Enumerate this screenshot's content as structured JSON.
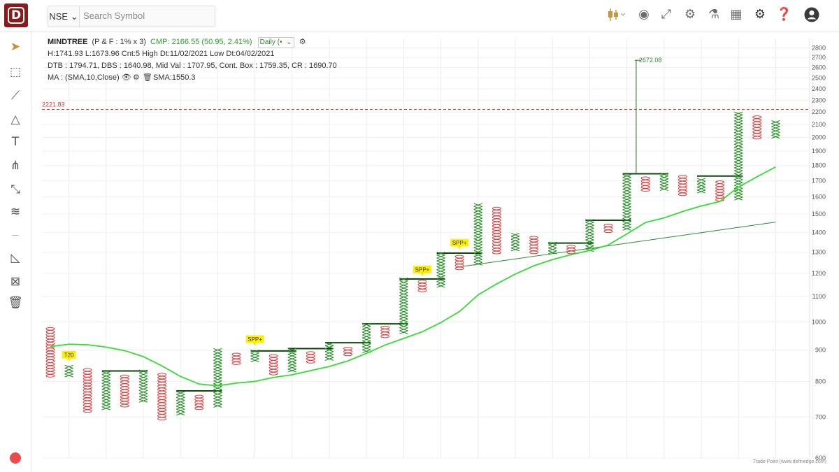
{
  "topbar": {
    "exchange": "NSE",
    "search_placeholder": "Search Symbol",
    "icons": [
      "candlestick-icon",
      "theme-icon",
      "resize-icon",
      "settings-scan-icon",
      "lab-icon",
      "layout-icon",
      "gear-icon",
      "help-icon",
      "user-icon"
    ]
  },
  "sidebar": {
    "tools": [
      "cursor-icon",
      "rectangle-tool-icon",
      "line-tool-icon",
      "shapes-icon",
      "text-tool-icon",
      "pitchfork-icon",
      "trendline-icon",
      "parallel-channel-icon",
      "measure-icon",
      "fib-icon",
      "remove-icon",
      "trash-icon"
    ]
  },
  "info": {
    "symbol": "MINDTREE",
    "params": "(P & F : 1% x 3)",
    "cmp": "CMP: 2166.55 (50.95, 2.41%)",
    "timeframe": "Daily (•",
    "line2": "H:1741.93 L:1673.96 Cnt:5 High Dt:11/02/2021 Low Dt:04/02/2021",
    "line3": "DTB : 1794.71, DBS : 1640.98, Mid Val : 1707.95, Cont. Box : 1759.35, CR : 1690.70",
    "ma_label": "MA : (SMA,10,Close)",
    "ma_value": "SMA:1550.3"
  },
  "credit": "Trade Point (www.definedge.com)",
  "chart_data": {
    "type": "point-and-figure",
    "y_scale": "log",
    "ylim": [
      600,
      2900
    ],
    "y_ticks": [
      600,
      700,
      800,
      900,
      1000,
      1100,
      1200,
      1300,
      1400,
      1500,
      1600,
      1700,
      1800,
      1900,
      2000,
      2100,
      2200,
      2300,
      2400,
      2500,
      2600,
      2700,
      2800
    ],
    "colors": {
      "x": "#1e8a1e",
      "o": "#e03b3b",
      "sma": "#33dd33",
      "trendline": "#2e8b2e",
      "hline": "#e03b3b",
      "support": "#0a4a0a",
      "badge": "#ffee00"
    },
    "columns": [
      {
        "t": "O",
        "hi": 980,
        "lo": 815
      },
      {
        "t": "X",
        "hi": 850,
        "lo": 820
      },
      {
        "t": "O",
        "hi": 840,
        "lo": 715
      },
      {
        "t": "X",
        "hi": 830,
        "lo": 725
      },
      {
        "t": "O",
        "hi": 820,
        "lo": 730
      },
      {
        "t": "X",
        "hi": 835,
        "lo": 740
      },
      {
        "t": "O",
        "hi": 825,
        "lo": 695
      },
      {
        "t": "X",
        "hi": 770,
        "lo": 705
      },
      {
        "t": "O",
        "hi": 760,
        "lo": 720
      },
      {
        "t": "X",
        "hi": 905,
        "lo": 730
      },
      {
        "t": "O",
        "hi": 890,
        "lo": 860
      },
      {
        "t": "X",
        "hi": 900,
        "lo": 870
      },
      {
        "t": "O",
        "hi": 885,
        "lo": 820
      },
      {
        "t": "X",
        "hi": 905,
        "lo": 830
      },
      {
        "t": "O",
        "hi": 895,
        "lo": 865
      },
      {
        "t": "X",
        "hi": 925,
        "lo": 875
      },
      {
        "t": "O",
        "hi": 910,
        "lo": 885
      },
      {
        "t": "X",
        "hi": 995,
        "lo": 895
      },
      {
        "t": "O",
        "hi": 985,
        "lo": 950
      },
      {
        "t": "X",
        "hi": 1180,
        "lo": 960
      },
      {
        "t": "O",
        "hi": 1170,
        "lo": 1125
      },
      {
        "t": "X",
        "hi": 1300,
        "lo": 1140
      },
      {
        "t": "O",
        "hi": 1285,
        "lo": 1225
      },
      {
        "t": "X",
        "hi": 1560,
        "lo": 1240
      },
      {
        "t": "O",
        "hi": 1540,
        "lo": 1305
      },
      {
        "t": "X",
        "hi": 1395,
        "lo": 1320
      },
      {
        "t": "O",
        "hi": 1380,
        "lo": 1295
      },
      {
        "t": "X",
        "hi": 1350,
        "lo": 1300
      },
      {
        "t": "O",
        "hi": 1335,
        "lo": 1295
      },
      {
        "t": "X",
        "hi": 1470,
        "lo": 1310
      },
      {
        "t": "O",
        "hi": 1445,
        "lo": 1410
      },
      {
        "t": "X",
        "hi": 1740,
        "lo": 1420
      },
      {
        "t": "O",
        "hi": 1725,
        "lo": 1640
      },
      {
        "t": "X",
        "hi": 1750,
        "lo": 1655
      },
      {
        "t": "O",
        "hi": 1735,
        "lo": 1620
      },
      {
        "t": "X",
        "hi": 1715,
        "lo": 1630
      },
      {
        "t": "O",
        "hi": 1700,
        "lo": 1575
      },
      {
        "t": "X",
        "hi": 2200,
        "lo": 1590
      },
      {
        "t": "O",
        "hi": 2170,
        "lo": 1990
      },
      {
        "t": "X",
        "hi": 2130,
        "lo": 2010
      }
    ],
    "spike": {
      "col": 31.5,
      "value": 2672.08,
      "label": "2672.08"
    },
    "hline": {
      "value": 2221.83,
      "label": "2221.83"
    },
    "badges": [
      {
        "col": 1,
        "value": 860,
        "text": "T20"
      },
      {
        "col": 11,
        "value": 912,
        "text": "SPP+"
      },
      {
        "col": 20,
        "value": 1185,
        "text": "SPP+"
      },
      {
        "col": 22,
        "value": 1310,
        "text": "SPP+"
      }
    ],
    "support_lines": [
      {
        "c1": 3,
        "c2": 5,
        "value": 832
      },
      {
        "c1": 7,
        "c2": 9,
        "value": 772
      },
      {
        "c1": 11,
        "c2": 13,
        "value": 897
      },
      {
        "c1": 13,
        "c2": 15,
        "value": 905
      },
      {
        "c1": 15,
        "c2": 17,
        "value": 925
      },
      {
        "c1": 17,
        "c2": 19,
        "value": 993
      },
      {
        "c1": 19,
        "c2": 21,
        "value": 1175
      },
      {
        "c1": 21,
        "c2": 23,
        "value": 1295
      },
      {
        "c1": 27,
        "c2": 29,
        "value": 1345
      },
      {
        "c1": 29,
        "c2": 31,
        "value": 1465
      },
      {
        "c1": 31,
        "c2": 33,
        "value": 1745
      },
      {
        "c1": 35,
        "c2": 37,
        "value": 1730
      }
    ],
    "trendlines": [
      {
        "c1": 22,
        "v1": 1230,
        "c2": 39,
        "v2": 1455
      }
    ],
    "sma": [
      [
        0,
        912
      ],
      [
        1,
        920
      ],
      [
        2,
        918
      ],
      [
        3,
        910
      ],
      [
        4,
        898
      ],
      [
        5,
        878
      ],
      [
        6,
        848
      ],
      [
        7,
        815
      ],
      [
        8,
        792
      ],
      [
        9,
        787
      ],
      [
        10,
        795
      ],
      [
        11,
        800
      ],
      [
        12,
        812
      ],
      [
        13,
        820
      ],
      [
        14,
        833
      ],
      [
        15,
        846
      ],
      [
        16,
        864
      ],
      [
        17,
        889
      ],
      [
        18,
        917
      ],
      [
        19,
        940
      ],
      [
        20,
        964
      ],
      [
        21,
        998
      ],
      [
        22,
        1040
      ],
      [
        23,
        1107
      ],
      [
        24,
        1154
      ],
      [
        25,
        1197
      ],
      [
        26,
        1235
      ],
      [
        27,
        1264
      ],
      [
        28,
        1288
      ],
      [
        29,
        1308
      ],
      [
        30,
        1335
      ],
      [
        31,
        1392
      ],
      [
        32,
        1453
      ],
      [
        33,
        1478
      ],
      [
        34,
        1514
      ],
      [
        35,
        1546
      ],
      [
        36,
        1572
      ],
      [
        37,
        1660
      ],
      [
        38,
        1725
      ],
      [
        39,
        1790
      ]
    ],
    "sma_label": "SMA:1550.3"
  }
}
